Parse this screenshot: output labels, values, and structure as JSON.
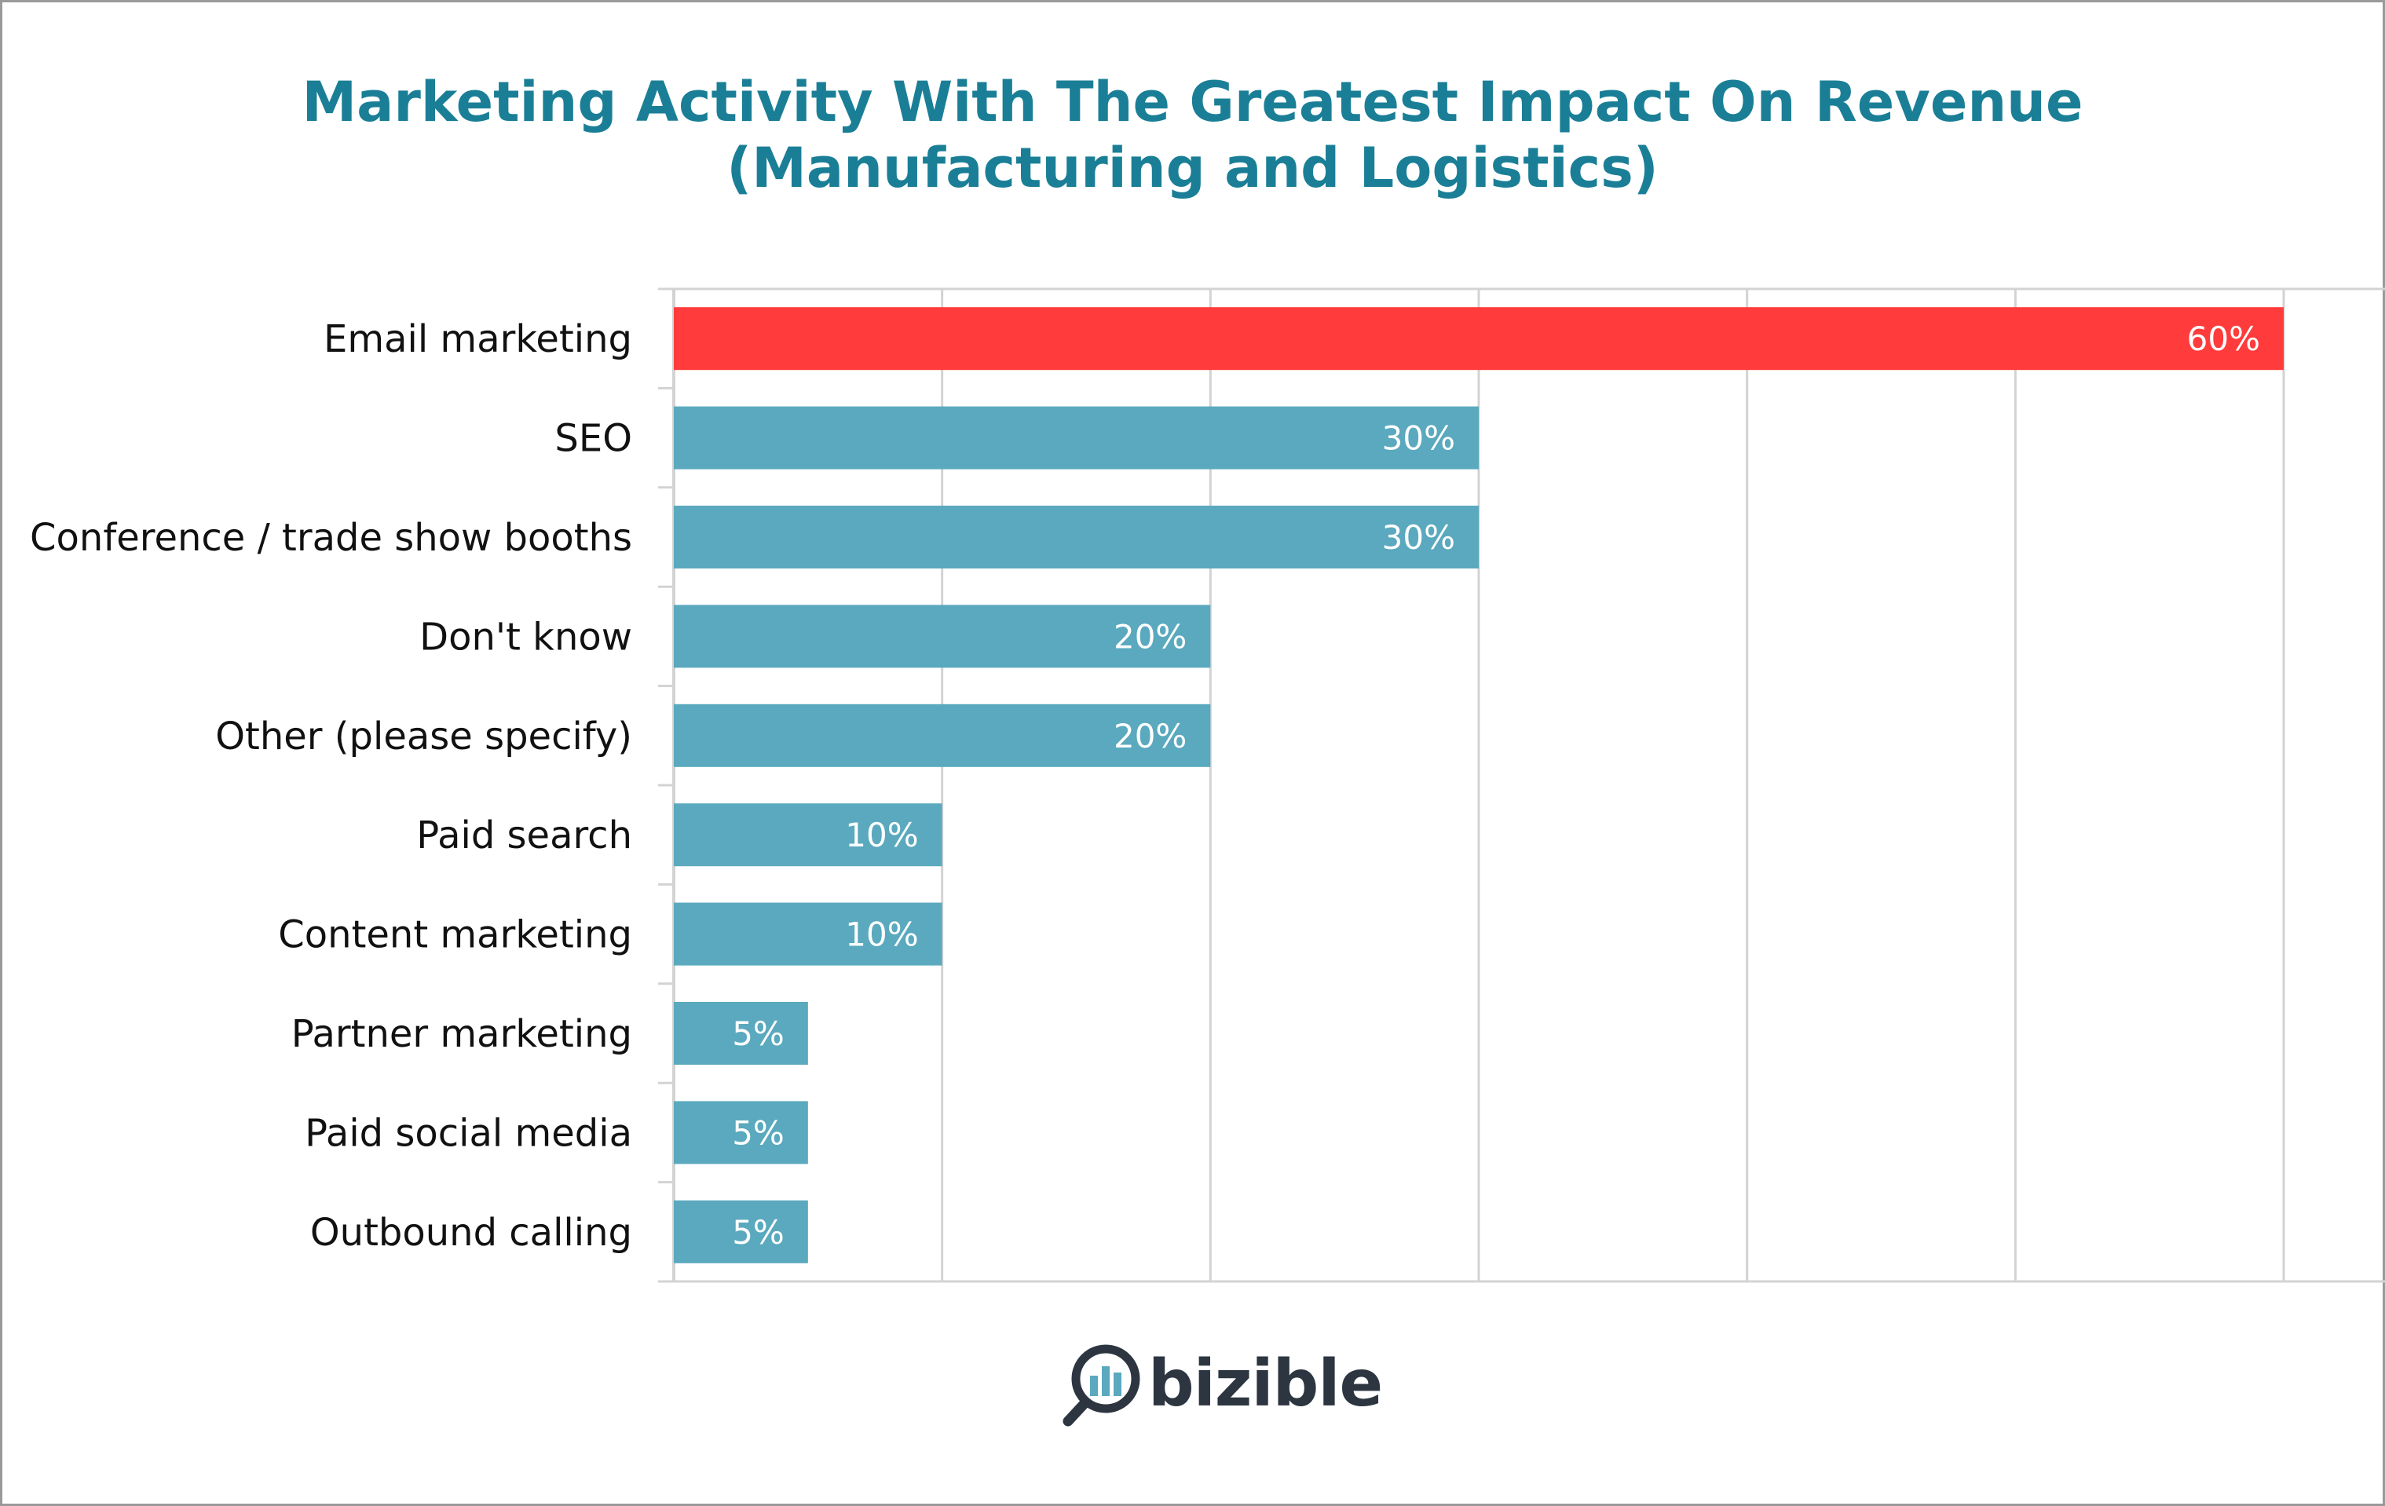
{
  "title_line1": "Marketing Activity With The Greatest Impact On Revenue",
  "title_line2": "(Manufacturing and Logistics)",
  "brand": "bizible",
  "logo_icon": "magnifier-bar-chart-icon",
  "colors": {
    "highlight": "#ff3b3b",
    "bar": "#5aa9be",
    "title": "#1a7f96",
    "grid": "#d3d3d3"
  },
  "chart_data": {
    "type": "bar",
    "orientation": "horizontal",
    "title": "Marketing Activity With The Greatest Impact On Revenue (Manufacturing and Logistics)",
    "categories": [
      "Email marketing",
      "SEO",
      "Conference / trade show booths",
      "Don't know",
      "Other (please specify)",
      "Paid search",
      "Content marketing",
      "Partner marketing",
      "Paid social media",
      "Outbound calling"
    ],
    "values": [
      60,
      30,
      30,
      20,
      20,
      10,
      10,
      5,
      5,
      5
    ],
    "value_labels": [
      "60%",
      "30%",
      "30%",
      "20%",
      "20%",
      "10%",
      "10%",
      "5%",
      "5%",
      "5%"
    ],
    "highlight_index": 0,
    "xlim": [
      0,
      60
    ],
    "grid": true,
    "legend": "none"
  }
}
